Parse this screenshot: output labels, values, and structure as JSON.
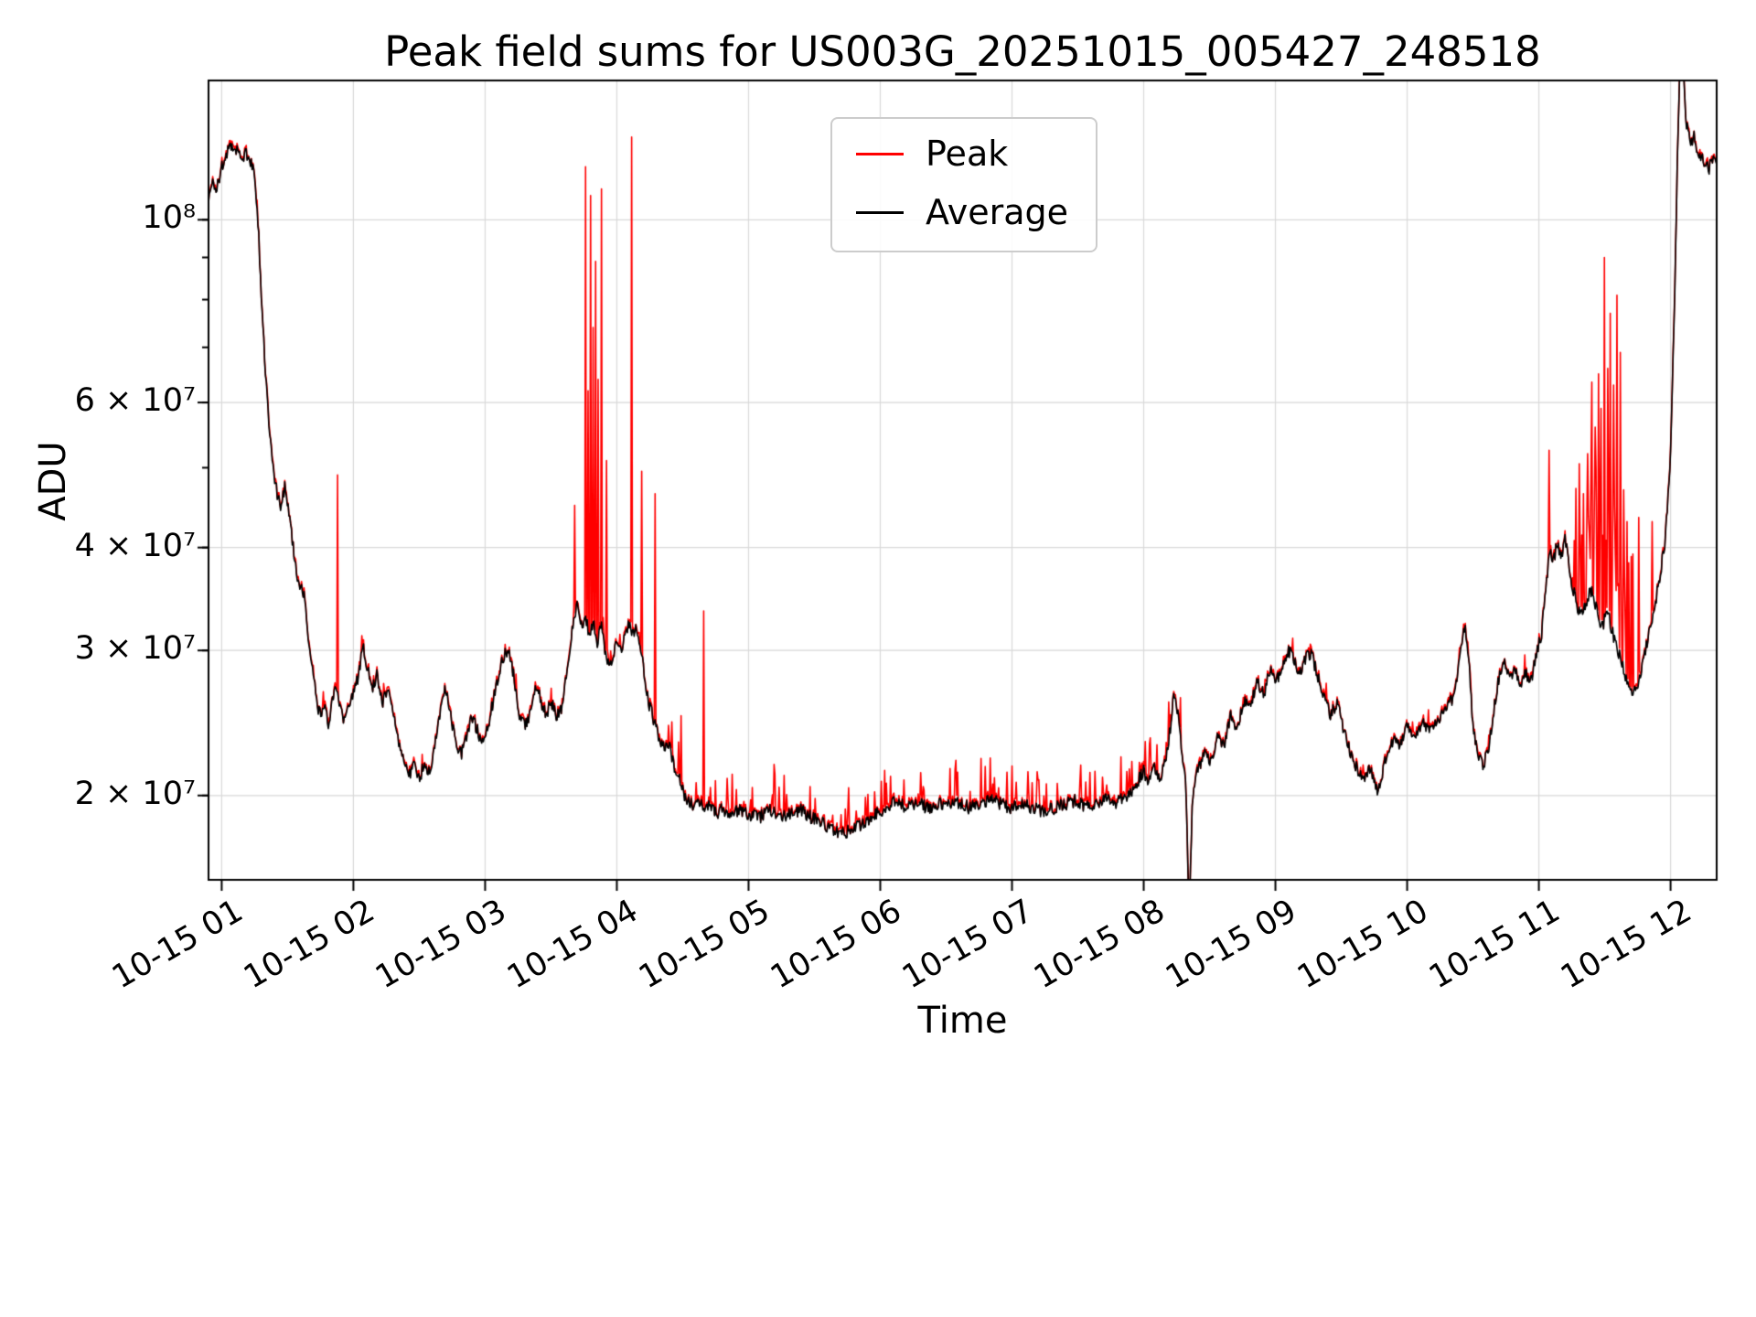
{
  "colors": {
    "grid": "#d9d9d9",
    "frame": "#000000",
    "peak": "#ff0000",
    "average": "#000000",
    "background": "#ffffff"
  },
  "chart_data": {
    "type": "line",
    "title": "Peak field sums for US003G_20251015_005427_248518",
    "xlabel": "Time",
    "ylabel": "ADU",
    "yscale": "log",
    "grid": true,
    "legend_position": "upper center",
    "xlim_hours": [
      0.9,
      12.35
    ],
    "ylim": [
      15800000,
      147600000
    ],
    "value_scale": 10000000,
    "x_ticks": [
      {
        "hour": 1,
        "label": "10-15 01"
      },
      {
        "hour": 2,
        "label": "10-15 02"
      },
      {
        "hour": 3,
        "label": "10-15 03"
      },
      {
        "hour": 4,
        "label": "10-15 04"
      },
      {
        "hour": 5,
        "label": "10-15 05"
      },
      {
        "hour": 6,
        "label": "10-15 06"
      },
      {
        "hour": 7,
        "label": "10-15 07"
      },
      {
        "hour": 8,
        "label": "10-15 08"
      },
      {
        "hour": 9,
        "label": "10-15 09"
      },
      {
        "hour": 10,
        "label": "10-15 10"
      },
      {
        "hour": 11,
        "label": "10-15 11"
      },
      {
        "hour": 12,
        "label": "10-15 12"
      }
    ],
    "y_ticks": [
      {
        "value": 20000000,
        "label": "2 × 10⁷"
      },
      {
        "value": 30000000,
        "label": "3 × 10⁷"
      },
      {
        "value": 40000000,
        "label": "4 × 10⁷"
      },
      {
        "value": 60000000,
        "label": "6 × 10⁷"
      },
      {
        "value": 100000000,
        "label": "10⁸"
      }
    ],
    "y_minor_ticks": [
      20000000,
      30000000,
      40000000,
      50000000,
      60000000,
      70000000,
      80000000,
      90000000,
      100000000
    ],
    "legend": [
      {
        "label": "Peak",
        "color": "#ff0000"
      },
      {
        "label": "Average",
        "color": "#000000"
      }
    ],
    "noise": {
      "seed": 1337,
      "amplitude": 0.018,
      "peak_base_lift": 0.012
    },
    "average_keypoints": [
      [
        0.9,
        10.6
      ],
      [
        0.93,
        11.1
      ],
      [
        0.96,
        10.9
      ],
      [
        1.0,
        11.6
      ],
      [
        1.03,
        12.0
      ],
      [
        1.06,
        12.25
      ],
      [
        1.09,
        12.1
      ],
      [
        1.12,
        12.25
      ],
      [
        1.15,
        11.8
      ],
      [
        1.18,
        12.05
      ],
      [
        1.21,
        11.9
      ],
      [
        1.24,
        11.5
      ],
      [
        1.27,
        10.4
      ],
      [
        1.3,
        8.2
      ],
      [
        1.33,
        6.6
      ],
      [
        1.36,
        5.6
      ],
      [
        1.39,
        5.0
      ],
      [
        1.42,
        4.65
      ],
      [
        1.45,
        4.5
      ],
      [
        1.48,
        4.75
      ],
      [
        1.51,
        4.4
      ],
      [
        1.54,
        4.05
      ],
      [
        1.57,
        3.7
      ],
      [
        1.6,
        3.6
      ],
      [
        1.63,
        3.5
      ],
      [
        1.66,
        3.1
      ],
      [
        1.69,
        2.85
      ],
      [
        1.72,
        2.6
      ],
      [
        1.75,
        2.5
      ],
      [
        1.78,
        2.55
      ],
      [
        1.81,
        2.45
      ],
      [
        1.84,
        2.6
      ],
      [
        1.87,
        2.7
      ],
      [
        1.9,
        2.55
      ],
      [
        1.93,
        2.45
      ],
      [
        1.96,
        2.55
      ],
      [
        2.0,
        2.65
      ],
      [
        2.04,
        2.8
      ],
      [
        2.07,
        3.05
      ],
      [
        2.1,
        2.9
      ],
      [
        2.14,
        2.7
      ],
      [
        2.18,
        2.8
      ],
      [
        2.22,
        2.6
      ],
      [
        2.26,
        2.7
      ],
      [
        2.3,
        2.5
      ],
      [
        2.34,
        2.35
      ],
      [
        2.38,
        2.2
      ],
      [
        2.42,
        2.1
      ],
      [
        2.46,
        2.18
      ],
      [
        2.5,
        2.08
      ],
      [
        2.54,
        2.2
      ],
      [
        2.58,
        2.12
      ],
      [
        2.62,
        2.3
      ],
      [
        2.66,
        2.55
      ],
      [
        2.7,
        2.7
      ],
      [
        2.74,
        2.5
      ],
      [
        2.78,
        2.3
      ],
      [
        2.82,
        2.25
      ],
      [
        2.86,
        2.35
      ],
      [
        2.9,
        2.5
      ],
      [
        2.94,
        2.4
      ],
      [
        2.98,
        2.32
      ],
      [
        3.02,
        2.42
      ],
      [
        3.06,
        2.6
      ],
      [
        3.1,
        2.8
      ],
      [
        3.14,
        2.95
      ],
      [
        3.18,
        3.0
      ],
      [
        3.22,
        2.78
      ],
      [
        3.26,
        2.5
      ],
      [
        3.3,
        2.42
      ],
      [
        3.34,
        2.52
      ],
      [
        3.38,
        2.72
      ],
      [
        3.42,
        2.62
      ],
      [
        3.46,
        2.5
      ],
      [
        3.5,
        2.6
      ],
      [
        3.54,
        2.5
      ],
      [
        3.58,
        2.56
      ],
      [
        3.62,
        2.8
      ],
      [
        3.66,
        3.15
      ],
      [
        3.7,
        3.45
      ],
      [
        3.73,
        3.2
      ],
      [
        3.76,
        3.3
      ],
      [
        3.79,
        3.15
      ],
      [
        3.82,
        3.25
      ],
      [
        3.85,
        3.05
      ],
      [
        3.88,
        3.25
      ],
      [
        3.91,
        3.0
      ],
      [
        3.94,
        2.9
      ],
      [
        3.97,
        2.95
      ],
      [
        4.0,
        3.05
      ],
      [
        4.03,
        3.0
      ],
      [
        4.06,
        3.1
      ],
      [
        4.09,
        3.25
      ],
      [
        4.12,
        3.15
      ],
      [
        4.15,
        3.2
      ],
      [
        4.18,
        3.0
      ],
      [
        4.21,
        2.8
      ],
      [
        4.24,
        2.6
      ],
      [
        4.27,
        2.5
      ],
      [
        4.3,
        2.42
      ],
      [
        4.33,
        2.3
      ],
      [
        4.36,
        2.28
      ],
      [
        4.39,
        2.32
      ],
      [
        4.42,
        2.22
      ],
      [
        4.45,
        2.12
      ],
      [
        4.48,
        2.08
      ],
      [
        4.51,
        2.0
      ],
      [
        4.54,
        1.98
      ],
      [
        4.58,
        1.94
      ],
      [
        4.62,
        1.97
      ],
      [
        4.66,
        1.92
      ],
      [
        4.7,
        1.95
      ],
      [
        4.75,
        1.9
      ],
      [
        4.8,
        1.93
      ],
      [
        4.86,
        1.88
      ],
      [
        4.92,
        1.92
      ],
      [
        5.0,
        1.9
      ],
      [
        5.08,
        1.88
      ],
      [
        5.16,
        1.92
      ],
      [
        5.24,
        1.88
      ],
      [
        5.32,
        1.9
      ],
      [
        5.4,
        1.92
      ],
      [
        5.48,
        1.88
      ],
      [
        5.56,
        1.85
      ],
      [
        5.64,
        1.82
      ],
      [
        5.72,
        1.8
      ],
      [
        5.8,
        1.82
      ],
      [
        5.88,
        1.86
      ],
      [
        5.96,
        1.9
      ],
      [
        6.04,
        1.93
      ],
      [
        6.12,
        1.97
      ],
      [
        6.2,
        1.93
      ],
      [
        6.28,
        1.96
      ],
      [
        6.36,
        1.93
      ],
      [
        6.44,
        1.96
      ],
      [
        6.52,
        1.94
      ],
      [
        6.6,
        1.96
      ],
      [
        6.68,
        1.93
      ],
      [
        6.76,
        1.96
      ],
      [
        6.84,
        1.98
      ],
      [
        6.92,
        1.95
      ],
      [
        7.0,
        1.93
      ],
      [
        7.08,
        1.96
      ],
      [
        7.16,
        1.93
      ],
      [
        7.24,
        1.91
      ],
      [
        7.32,
        1.93
      ],
      [
        7.4,
        1.95
      ],
      [
        7.48,
        1.97
      ],
      [
        7.56,
        1.94
      ],
      [
        7.64,
        1.96
      ],
      [
        7.72,
        1.98
      ],
      [
        7.8,
        1.96
      ],
      [
        7.88,
        2.0
      ],
      [
        7.94,
        2.06
      ],
      [
        8.0,
        2.14
      ],
      [
        8.04,
        2.08
      ],
      [
        8.08,
        2.16
      ],
      [
        8.12,
        2.1
      ],
      [
        8.16,
        2.18
      ],
      [
        8.2,
        2.4
      ],
      [
        8.23,
        2.68
      ],
      [
        8.26,
        2.5
      ],
      [
        8.29,
        2.28
      ],
      [
        8.32,
        2.05
      ],
      [
        8.345,
        1.42
      ],
      [
        8.37,
        2.0
      ],
      [
        8.41,
        2.15
      ],
      [
        8.46,
        2.25
      ],
      [
        8.51,
        2.2
      ],
      [
        8.56,
        2.35
      ],
      [
        8.61,
        2.3
      ],
      [
        8.66,
        2.5
      ],
      [
        8.71,
        2.42
      ],
      [
        8.76,
        2.6
      ],
      [
        8.81,
        2.55
      ],
      [
        8.86,
        2.75
      ],
      [
        8.91,
        2.65
      ],
      [
        8.96,
        2.85
      ],
      [
        9.01,
        2.75
      ],
      [
        9.06,
        2.9
      ],
      [
        9.1,
        3.0
      ],
      [
        9.14,
        2.92
      ],
      [
        9.18,
        2.82
      ],
      [
        9.22,
        2.92
      ],
      [
        9.27,
        2.98
      ],
      [
        9.32,
        2.8
      ],
      [
        9.37,
        2.65
      ],
      [
        9.42,
        2.5
      ],
      [
        9.47,
        2.6
      ],
      [
        9.52,
        2.4
      ],
      [
        9.57,
        2.25
      ],
      [
        9.62,
        2.15
      ],
      [
        9.67,
        2.1
      ],
      [
        9.72,
        2.15
      ],
      [
        9.78,
        2.02
      ],
      [
        9.84,
        2.22
      ],
      [
        9.9,
        2.35
      ],
      [
        9.95,
        2.3
      ],
      [
        10.0,
        2.45
      ],
      [
        10.06,
        2.35
      ],
      [
        10.12,
        2.45
      ],
      [
        10.18,
        2.4
      ],
      [
        10.24,
        2.48
      ],
      [
        10.3,
        2.55
      ],
      [
        10.36,
        2.65
      ],
      [
        10.41,
        3.0
      ],
      [
        10.44,
        3.22
      ],
      [
        10.47,
        2.9
      ],
      [
        10.5,
        2.4
      ],
      [
        10.54,
        2.22
      ],
      [
        10.58,
        2.18
      ],
      [
        10.62,
        2.3
      ],
      [
        10.66,
        2.55
      ],
      [
        10.7,
        2.8
      ],
      [
        10.74,
        2.88
      ],
      [
        10.78,
        2.78
      ],
      [
        10.82,
        2.85
      ],
      [
        10.86,
        2.72
      ],
      [
        10.9,
        2.82
      ],
      [
        10.94,
        2.75
      ],
      [
        10.98,
        2.95
      ],
      [
        11.02,
        3.15
      ],
      [
        11.05,
        3.5
      ],
      [
        11.08,
        4.0
      ],
      [
        11.11,
        3.85
      ],
      [
        11.14,
        4.05
      ],
      [
        11.17,
        3.9
      ],
      [
        11.2,
        4.1
      ],
      [
        11.24,
        3.7
      ],
      [
        11.28,
        3.45
      ],
      [
        11.32,
        3.3
      ],
      [
        11.36,
        3.45
      ],
      [
        11.4,
        3.55
      ],
      [
        11.44,
        3.35
      ],
      [
        11.48,
        3.2
      ],
      [
        11.52,
        3.35
      ],
      [
        11.56,
        3.15
      ],
      [
        11.6,
        3.0
      ],
      [
        11.64,
        2.85
      ],
      [
        11.68,
        2.7
      ],
      [
        11.72,
        2.65
      ],
      [
        11.76,
        2.75
      ],
      [
        11.8,
        2.95
      ],
      [
        11.84,
        3.15
      ],
      [
        11.88,
        3.4
      ],
      [
        11.92,
        3.7
      ],
      [
        11.96,
        4.1
      ],
      [
        12.0,
        5.2
      ],
      [
        12.03,
        7.8
      ],
      [
        12.05,
        11.5
      ],
      [
        12.07,
        15.3
      ],
      [
        12.1,
        14.9
      ],
      [
        12.12,
        13.1
      ],
      [
        12.15,
        12.3
      ],
      [
        12.18,
        12.7
      ],
      [
        12.21,
        12.0
      ],
      [
        12.25,
        11.8
      ],
      [
        12.29,
        11.5
      ],
      [
        12.32,
        11.9
      ],
      [
        12.35,
        11.6
      ]
    ],
    "peak_spikes": [
      [
        1.88,
        4.9
      ],
      [
        3.68,
        4.5
      ],
      [
        3.76,
        11.6
      ],
      [
        3.78,
        6.2
      ],
      [
        3.8,
        10.7
      ],
      [
        3.82,
        7.4
      ],
      [
        3.84,
        8.9
      ],
      [
        3.86,
        6.4
      ],
      [
        3.885,
        10.9
      ],
      [
        3.92,
        5.1
      ],
      [
        4.11,
        12.6
      ],
      [
        4.19,
        4.95
      ],
      [
        4.29,
        4.65
      ],
      [
        4.49,
        2.5
      ],
      [
        4.66,
        3.35
      ],
      [
        8.05,
        2.35
      ],
      [
        8.17,
        2.32
      ],
      [
        9.33,
        2.65
      ],
      [
        11.08,
        5.25
      ],
      [
        11.28,
        4.5
      ],
      [
        11.31,
        4.05
      ],
      [
        11.34,
        4.65
      ],
      [
        11.37,
        5.2
      ],
      [
        11.4,
        6.35
      ],
      [
        11.425,
        5.6
      ],
      [
        11.45,
        6.5
      ],
      [
        11.475,
        5.9
      ],
      [
        11.5,
        9.0
      ],
      [
        11.52,
        6.6
      ],
      [
        11.545,
        7.7
      ],
      [
        11.57,
        6.3
      ],
      [
        11.595,
        8.1
      ],
      [
        11.62,
        6.9
      ],
      [
        11.645,
        4.7
      ],
      [
        11.67,
        4.3
      ],
      [
        11.7,
        3.9
      ],
      [
        11.76,
        4.35
      ],
      [
        11.86,
        4.3
      ]
    ],
    "peak_minor_spike_regions": [
      {
        "range": [
          0.9,
          4.35
        ],
        "prob": 0.05,
        "max_factor": 1.05
      },
      {
        "range": [
          4.35,
          8.3
        ],
        "prob": 0.15,
        "max_factor": 1.13
      },
      {
        "range": [
          8.3,
          11.25
        ],
        "prob": 0.04,
        "max_factor": 1.06
      },
      {
        "range": [
          11.25,
          11.72
        ],
        "prob": 0.45,
        "max_factor": 1.5
      }
    ]
  }
}
